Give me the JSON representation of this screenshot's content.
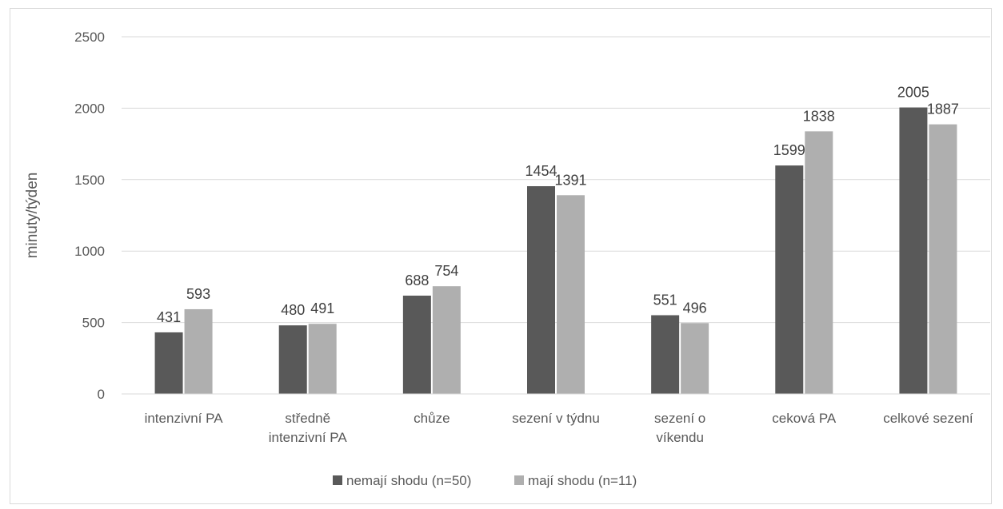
{
  "chart_data": {
    "type": "bar",
    "ylabel": "minuty/týden",
    "xlabel": "",
    "ylim": [
      0,
      2500
    ],
    "yticks": [
      0,
      500,
      1000,
      1500,
      2000,
      2500
    ],
    "grid": true,
    "legend_position": "bottom",
    "categories": [
      [
        "intenzivní PA"
      ],
      [
        "středně",
        "intenzivní PA"
      ],
      [
        "chůze"
      ],
      [
        "sezení v týdnu"
      ],
      [
        "sezení o",
        "víkendu"
      ],
      [
        "ceková PA"
      ],
      [
        "celkové sezení"
      ]
    ],
    "series": [
      {
        "name": "nemají shodu (n=50)",
        "color": "#595959",
        "values": [
          431,
          480,
          688,
          1454,
          551,
          1599,
          2005
        ]
      },
      {
        "name": "mají shodu (n=11)",
        "color": "#afafaf",
        "values": [
          593,
          491,
          754,
          1391,
          496,
          1838,
          1887
        ]
      }
    ]
  }
}
